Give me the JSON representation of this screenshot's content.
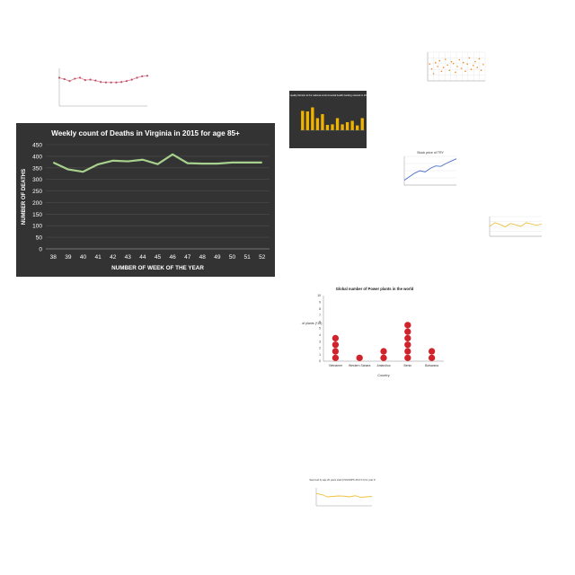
{
  "chart_data": [
    {
      "id": "main",
      "type": "line",
      "title": "Weekly count of Deaths in Virginia in 2015 for age 85+",
      "xlabel": "NUMBER OF WEEK OF THE YEAR",
      "ylabel": "NUMBER OF DEATHS",
      "categories": [
        "38",
        "39",
        "40",
        "41",
        "42",
        "43",
        "44",
        "45",
        "46",
        "47",
        "48",
        "49",
        "50",
        "51",
        "52"
      ],
      "values": [
        373,
        343,
        333,
        365,
        381,
        378,
        385,
        366,
        408,
        370,
        368,
        368,
        373,
        373,
        373
      ],
      "ylim": [
        0,
        450
      ],
      "yticks": [
        0,
        50,
        100,
        150,
        200,
        250,
        300,
        350,
        400,
        450
      ],
      "grid": true,
      "colors": {
        "background": "#333333",
        "line": "#a8d08d",
        "text": "#ffffff",
        "grid": "#4d4d4d"
      }
    },
    {
      "id": "thumb_pink_line",
      "type": "line",
      "categories": [
        "1",
        "2",
        "3",
        "4",
        "5",
        "6",
        "7",
        "8",
        "9",
        "10",
        "11",
        "12",
        "13",
        "14",
        "15",
        "16",
        "17",
        "18"
      ],
      "values": [
        60,
        57,
        53,
        58,
        60,
        55,
        56,
        54,
        51,
        50,
        50,
        50,
        51,
        53,
        56,
        60,
        63,
        64
      ],
      "ylim": [
        0,
        80
      ],
      "colors": {
        "line": "#d9808f",
        "marker": "#c0506a"
      }
    },
    {
      "id": "thumb_air_quality",
      "type": "bar",
      "title": "Air quality Monitor at the national environmental health tracking network in 2016",
      "values": [
        72,
        70,
        85,
        45,
        60,
        20,
        22,
        45,
        22,
        30,
        35,
        18,
        45
      ],
      "ylim": [
        0,
        100
      ],
      "colors": {
        "background": "#333333",
        "bar": "#f0b400",
        "text": "#ffffff"
      }
    },
    {
      "id": "thumb_scatter",
      "type": "scatter",
      "x": [
        1,
        2,
        3,
        4,
        5,
        6,
        7,
        8,
        9,
        10,
        11,
        12,
        13,
        14,
        15,
        16,
        17,
        18,
        19,
        20,
        21,
        22,
        23,
        24,
        25,
        26,
        27,
        28
      ],
      "values": [
        35,
        25,
        15,
        38,
        30,
        42,
        20,
        28,
        45,
        33,
        22,
        40,
        36,
        18,
        30,
        44,
        26,
        38,
        20,
        35,
        48,
        24,
        32,
        40,
        28,
        46,
        22,
        34
      ],
      "ylim": [
        0,
        60
      ],
      "colors": {
        "marker": "#f08a24"
      }
    },
    {
      "id": "thumb_stock",
      "type": "line",
      "title": "Stock price of TRY",
      "values": [
        20,
        35,
        50,
        60,
        55,
        70,
        80,
        78,
        90,
        100,
        110
      ],
      "ylim": [
        0,
        120
      ],
      "colors": {
        "line": "#4a6fc4"
      }
    },
    {
      "id": "thumb_yellow_wave",
      "type": "line",
      "values": [
        40,
        55,
        48,
        38,
        52,
        46,
        40,
        55,
        50,
        44,
        50
      ],
      "ylim": [
        0,
        80
      ],
      "colors": {
        "line": "#f0c040"
      }
    },
    {
      "id": "power_plants",
      "type": "scatter",
      "title": "Global number of Power plants in the world",
      "xlabel": "Country",
      "ylabel": "No. of plants (*10)",
      "categories": [
        "Vietnamer",
        "Western Sahara",
        "Antarctica",
        "Benin",
        "Botswana"
      ],
      "values": [
        4,
        1,
        2,
        6,
        2
      ],
      "ylim": [
        0,
        10
      ],
      "yticks": [
        0,
        1,
        2,
        3,
        4,
        5,
        6,
        7,
        8,
        9,
        10
      ],
      "colors": {
        "marker": "#d0232a"
      }
    },
    {
      "id": "thumb_bottom_yellow",
      "type": "line",
      "title": "Sea level by age 20 years total (USGS/NPS 2017-11) for year 1996",
      "values": [
        55,
        50,
        40,
        42,
        44,
        43,
        40,
        45,
        38,
        40,
        42
      ],
      "ylim": [
        0,
        80
      ],
      "colors": {
        "line": "#f0c040"
      }
    }
  ]
}
